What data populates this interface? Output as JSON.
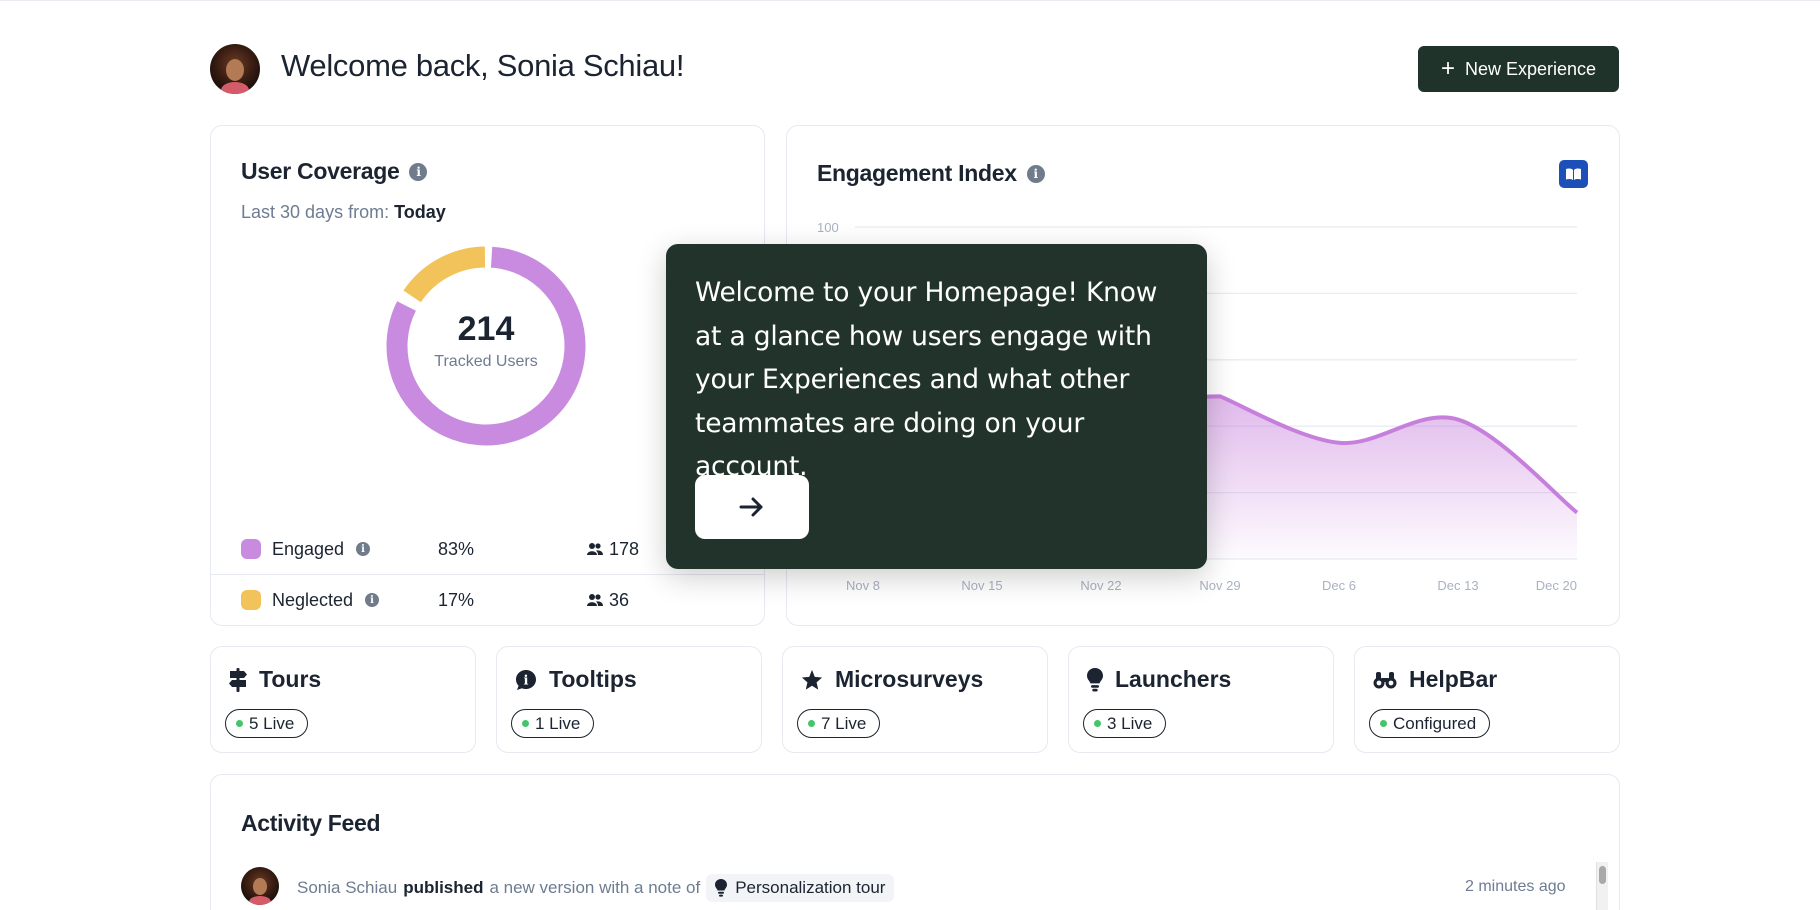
{
  "header": {
    "welcome": "Welcome back, Sonia Schiau!",
    "new_experience_label": "New Experience"
  },
  "coverage": {
    "title": "User Coverage",
    "range_prefix": "Last 30 days from:",
    "range_value": "Today",
    "total": "214",
    "total_label": "Tracked Users",
    "rows": [
      {
        "label": "Engaged",
        "percent": "83%",
        "count": "178",
        "color": "#c98bdf"
      },
      {
        "label": "Neglected",
        "percent": "17%",
        "count": "36",
        "color": "#f2c35b"
      }
    ],
    "engaged_fraction": 0.83
  },
  "engagement": {
    "title": "Engagement Index",
    "book_icon": "book-icon"
  },
  "chart_data": {
    "type": "area",
    "title": "Engagement Index",
    "y_tick_visible": "100",
    "ylim": [
      0,
      100
    ],
    "x_ticks": [
      "Nov 8",
      "Nov 15",
      "Nov 22",
      "Nov 29",
      "Dec 6",
      "Dec 13",
      "Dec 20"
    ],
    "series": [
      {
        "x": [
          "Nov 29",
          "Dec 6",
          "Dec 13",
          "Dec 20"
        ],
        "values": [
          49,
          35,
          42,
          14
        ],
        "color": "#c77fdc"
      }
    ],
    "grid": true
  },
  "tiles": [
    {
      "name": "Tours",
      "status": "5 Live",
      "icon": "signpost-icon",
      "live": true
    },
    {
      "name": "Tooltips",
      "status": "1 Live",
      "icon": "info-bubble-icon",
      "live": true
    },
    {
      "name": "Microsurveys",
      "status": "7 Live",
      "icon": "star-icon",
      "live": true
    },
    {
      "name": "Launchers",
      "status": "3 Live",
      "icon": "lightbulb-icon",
      "live": true
    },
    {
      "name": "HelpBar",
      "status": "Configured",
      "icon": "binoculars-icon",
      "live": true
    }
  ],
  "activity": {
    "title": "Activity Feed",
    "items": [
      {
        "user": "Sonia Schiau",
        "action": "published",
        "text": "a new version with a note of",
        "target": "Personalization tour",
        "time": "2 minutes ago"
      }
    ]
  },
  "tour_tooltip": {
    "text": "Welcome to your Homepage! Know at a glance how users engage with your Experiences and what other teammates are doing on your account.",
    "next_icon": "arrow-right-icon"
  }
}
